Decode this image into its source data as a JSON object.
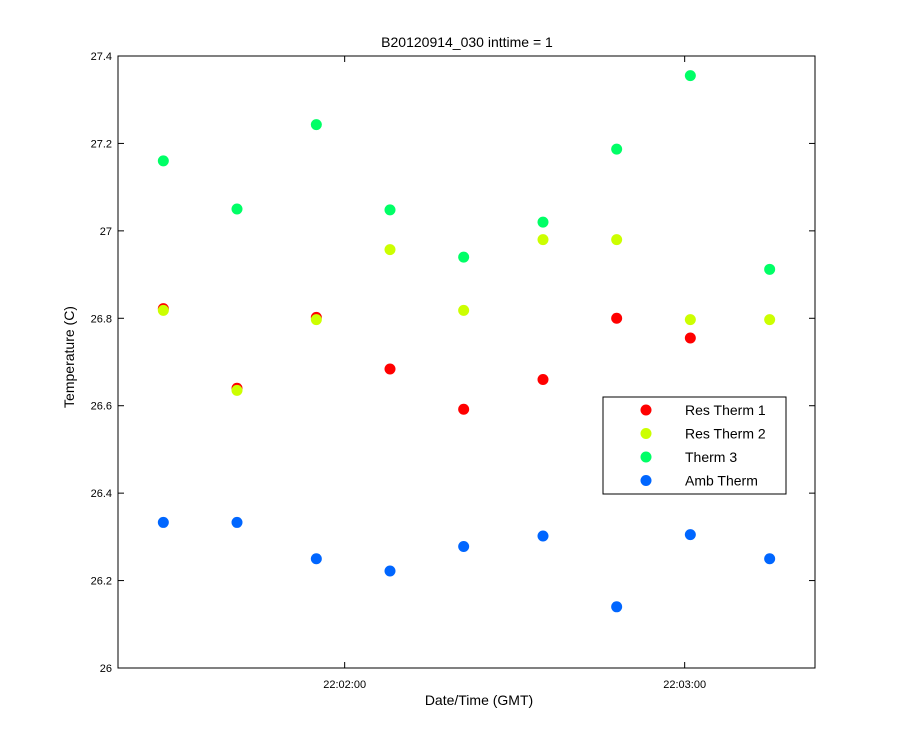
{
  "chart_data": {
    "type": "scatter",
    "title": "B20120914_030 inttime = 1",
    "xlabel": "Date/Time (GMT)",
    "ylabel": "Temperature (C)",
    "xlim": [
      "22:01:20",
      "22:03:23"
    ],
    "ylim": [
      26,
      27.4
    ],
    "xticks": [
      {
        "value": "22:02:00",
        "label": "22:02:00"
      },
      {
        "value": "22:03:00",
        "label": "22:03:00"
      }
    ],
    "yticks": [
      26,
      26.2,
      26.4,
      26.6,
      26.8,
      27,
      27.2,
      27.4
    ],
    "ytick_labels": [
      "26",
      "26.2",
      "26.4",
      "26.6",
      "26.8",
      "27",
      "27.2",
      "27.4"
    ],
    "grid": false,
    "legend_position": "right",
    "x": [
      "22:01:28",
      "22:01:41",
      "22:01:55",
      "22:02:08",
      "22:02:21",
      "22:02:35",
      "22:02:48",
      "22:03:01",
      "22:03:15"
    ],
    "series": [
      {
        "name": "Res Therm 1",
        "color": "#ff0000",
        "values": [
          26.822,
          26.64,
          26.802,
          26.684,
          26.592,
          26.66,
          26.8,
          26.755,
          null
        ]
      },
      {
        "name": "Res Therm 2",
        "color": "#ccff00",
        "values": [
          26.818,
          26.635,
          26.797,
          26.957,
          26.818,
          26.98,
          26.98,
          26.797,
          26.797
        ]
      },
      {
        "name": "Therm 3",
        "color": "#00ff66",
        "values": [
          27.16,
          27.05,
          27.243,
          27.048,
          26.94,
          27.02,
          27.187,
          27.355,
          26.912
        ]
      },
      {
        "name": "Amb Therm",
        "color": "#0066ff",
        "values": [
          26.333,
          26.333,
          26.25,
          26.222,
          26.278,
          26.302,
          26.14,
          26.305,
          26.25
        ]
      }
    ]
  }
}
